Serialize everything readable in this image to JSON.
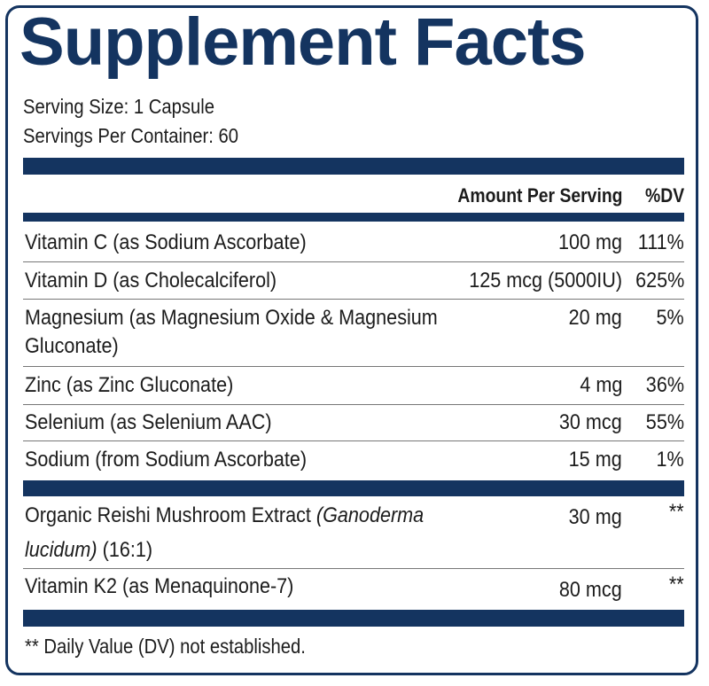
{
  "label": {
    "title": "Supplement Facts",
    "serving_size": "Serving Size: 1 Capsule",
    "servings_per_container": "Servings Per Container: 60",
    "header_amount": "Amount Per Serving",
    "header_dv": "%DV",
    "nutrients": [
      {
        "name": "Vitamin C (as Sodium Ascorbate)",
        "amount": "100 mg",
        "dv": "111%"
      },
      {
        "name": "Vitamin D (as Cholecalciferol)",
        "amount": "125 mcg (5000IU)",
        "dv": "625%"
      },
      {
        "name_line1": "Magnesium (as Magnesium Oxide & Magnesium",
        "name_line2": "Gluconate)",
        "amount": "20 mg",
        "dv": "5%"
      },
      {
        "name": "Zinc (as Zinc Gluconate)",
        "amount": "4 mg",
        "dv": "36%"
      },
      {
        "name": "Selenium (as Selenium AAC)",
        "amount": "30 mcg",
        "dv": "55%"
      },
      {
        "name": "Sodium (from Sodium Ascorbate)",
        "amount": "15 mg",
        "dv": "1%"
      }
    ],
    "other": [
      {
        "name_line1_plain": "Organic Reishi Mushroom Extract ",
        "name_line1_italic": "(Ganoderma",
        "name_line2_italic": "lucidum)",
        "name_line2_plain": " (16:1)",
        "amount": "30 mg",
        "dv": "**"
      },
      {
        "name": "Vitamin K2 (as Menaquinone-7)",
        "amount": "80 mcg",
        "dv": "**"
      }
    ],
    "footnote": "** Daily Value (DV) not established."
  },
  "colors": {
    "brand_navy": "#143460",
    "text": "#1c1c1c"
  }
}
